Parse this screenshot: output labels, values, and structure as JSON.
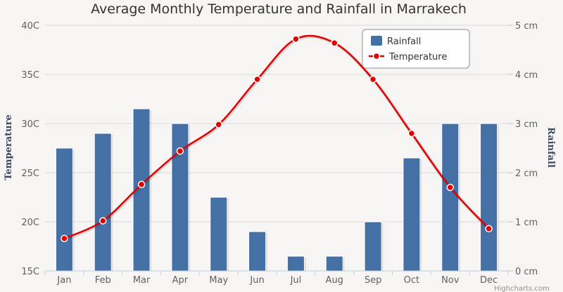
{
  "chart_data": {
    "type": "bar+line",
    "title": "Average Monthly Temperature and Rainfall in Marrakech",
    "categories": [
      "Jan",
      "Feb",
      "Mar",
      "Apr",
      "May",
      "Jun",
      "Jul",
      "Aug",
      "Sep",
      "Oct",
      "Nov",
      "Dec"
    ],
    "series": [
      {
        "name": "Rainfall",
        "type": "column",
        "axis": "right",
        "color": "#4470a6",
        "values": [
          2.5,
          2.8,
          3.3,
          3.0,
          1.5,
          0.8,
          0.3,
          0.3,
          1.0,
          2.3,
          3.0,
          3.0
        ]
      },
      {
        "name": "Temperature",
        "type": "spline",
        "axis": "left",
        "color": "#e00000",
        "values": [
          18.3,
          20.1,
          23.8,
          27.2,
          29.9,
          34.5,
          38.6,
          38.2,
          34.5,
          29.0,
          23.5,
          19.3
        ]
      }
    ],
    "left_axis": {
      "title": "Temperature",
      "min": 15,
      "max": 40,
      "ticks": [
        15,
        20,
        25,
        30,
        35,
        40
      ],
      "tick_labels": [
        "15C",
        "20C",
        "25C",
        "30C",
        "35C",
        "40C"
      ]
    },
    "right_axis": {
      "title": "Rainfall",
      "min": 0,
      "max": 5,
      "ticks": [
        0,
        1,
        2,
        3,
        4,
        5
      ],
      "tick_labels": [
        "0 cm",
        "1 cm",
        "2 cm",
        "3 cm",
        "4 cm",
        "5 cm"
      ]
    },
    "legend": {
      "position": "top-right",
      "entries": [
        "Rainfall",
        "Temperature"
      ]
    },
    "credits": "Highcharts.com"
  }
}
